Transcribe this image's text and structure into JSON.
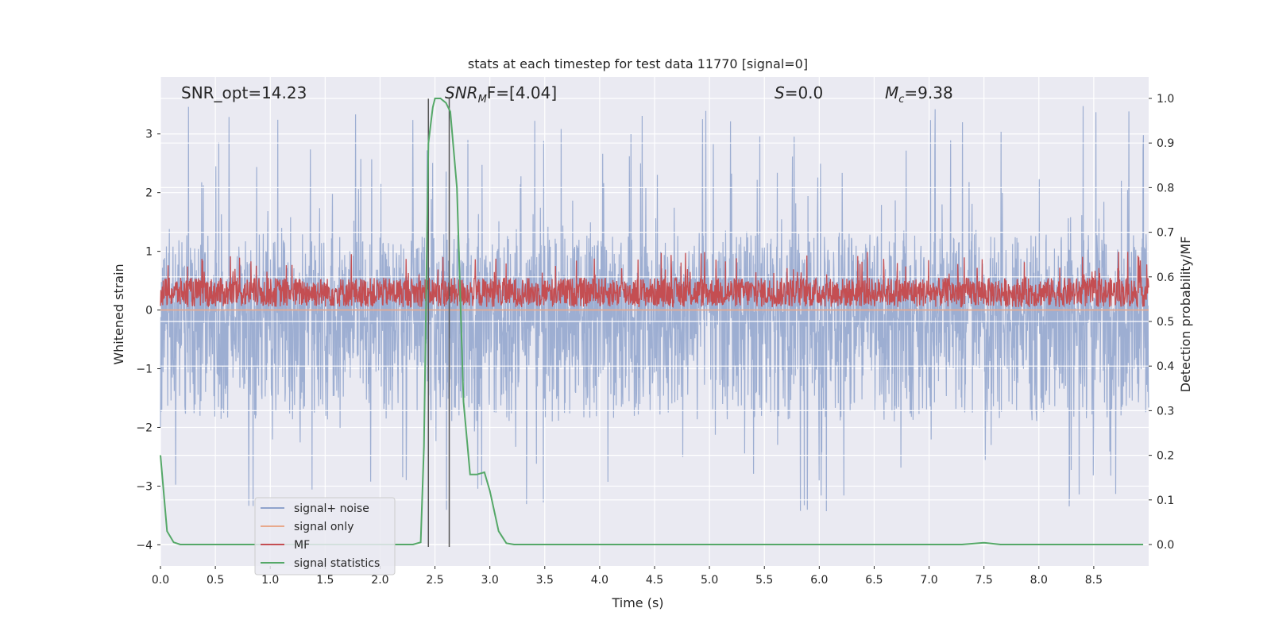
{
  "chart_data": {
    "type": "line",
    "title": "stats at each timestep for test data 11770 [signal=0]",
    "xlabel": "Time (s)",
    "ylabel": "Whitened strain",
    "y2label": "Detection probability/MF",
    "xlim": [
      0,
      9.0
    ],
    "ylim": [
      -4.36,
      3.97
    ],
    "y2lim": [
      -0.048,
      1.048
    ],
    "x_ticks": [
      0.0,
      0.5,
      1.0,
      1.5,
      2.0,
      2.5,
      3.0,
      3.5,
      4.0,
      4.5,
      5.0,
      5.5,
      6.0,
      6.5,
      7.0,
      7.5,
      8.0,
      8.5
    ],
    "x_tick_labels": [
      "0.0",
      "0.5",
      "1.0",
      "1.5",
      "2.0",
      "2.5",
      "3.0",
      "3.5",
      "4.0",
      "4.5",
      "5.0",
      "5.5",
      "6.0",
      "6.5",
      "7.0",
      "7.5",
      "8.0",
      "8.5"
    ],
    "y_ticks": [
      -4,
      -3,
      -2,
      -1,
      0,
      1,
      2,
      3
    ],
    "y_tick_labels": [
      "−4",
      "−3",
      "−2",
      "−1",
      "0",
      "1",
      "2",
      "3"
    ],
    "y2_ticks": [
      0.0,
      0.1,
      0.2,
      0.3,
      0.4,
      0.5,
      0.6,
      0.7,
      0.8,
      0.9,
      1.0
    ],
    "y2_tick_labels": [
      "0.0",
      "0.1",
      "0.2",
      "0.3",
      "0.4",
      "0.5",
      "0.6",
      "0.7",
      "0.8",
      "0.9",
      "1.0"
    ],
    "grid": true,
    "legend": {
      "location": "lower-left",
      "entries": [
        {
          "name": "signal+ noise",
          "color": "#8fa3cc"
        },
        {
          "name": "signal only",
          "color": "#e8a98c"
        },
        {
          "name": "MF",
          "color": "#c44e52"
        },
        {
          "name": "signal statistics",
          "color": "#55a868"
        }
      ]
    },
    "annotations": [
      {
        "prefix": "SNR_opt=14.23",
        "x": 0.2
      },
      {
        "math": "SNR",
        "sub": "M",
        "suffix": "F=[4.04]",
        "x": 2.6
      },
      {
        "math": "S",
        "suffix": "=0.0",
        "x": 5.6
      },
      {
        "math": "M",
        "sub": "c",
        "suffix": "=9.38",
        "x": 6.6
      }
    ],
    "vlines": [
      {
        "x": 2.44,
        "ymax": 3.6
      },
      {
        "x": 2.63,
        "ymax": 3.6
      }
    ],
    "noise_series": {
      "name": "signal+ noise",
      "sigma": 1.0,
      "band_min": -1.9,
      "band_max": 1.3,
      "peak_max": 3.62,
      "peak_min": -3.88
    },
    "mf_series": {
      "name": "MF",
      "center": 0.3,
      "band": [
        0.05,
        0.55
      ],
      "max": 1.0
    },
    "signal_only_series": {
      "name": "signal only",
      "value": 0.0
    },
    "statistic_series": {
      "name": "signal statistics",
      "x": [
        0.0,
        0.06,
        0.12,
        0.18,
        0.3,
        0.5,
        1.0,
        1.5,
        2.0,
        2.3,
        2.37,
        2.4,
        2.44,
        2.48,
        2.5,
        2.55,
        2.6,
        2.64,
        2.7,
        2.76,
        2.82,
        2.88,
        2.95,
        3.0,
        3.08,
        3.15,
        3.22,
        3.3,
        4.0,
        5.0,
        6.0,
        7.0,
        7.3,
        7.5,
        7.65,
        8.0,
        8.5,
        8.95
      ],
      "y": [
        0.2,
        0.03,
        0.005,
        0.0,
        0.0,
        0.0,
        0.0,
        0.0,
        0.0,
        0.0,
        0.005,
        0.22,
        0.9,
        0.98,
        1.0,
        1.0,
        0.99,
        0.97,
        0.8,
        0.32,
        0.157,
        0.157,
        0.162,
        0.12,
        0.03,
        0.003,
        0.0,
        0.0,
        0.0,
        0.0,
        0.0,
        0.0,
        0.0,
        0.004,
        0.0,
        0.0,
        0.0,
        0.0
      ]
    }
  }
}
